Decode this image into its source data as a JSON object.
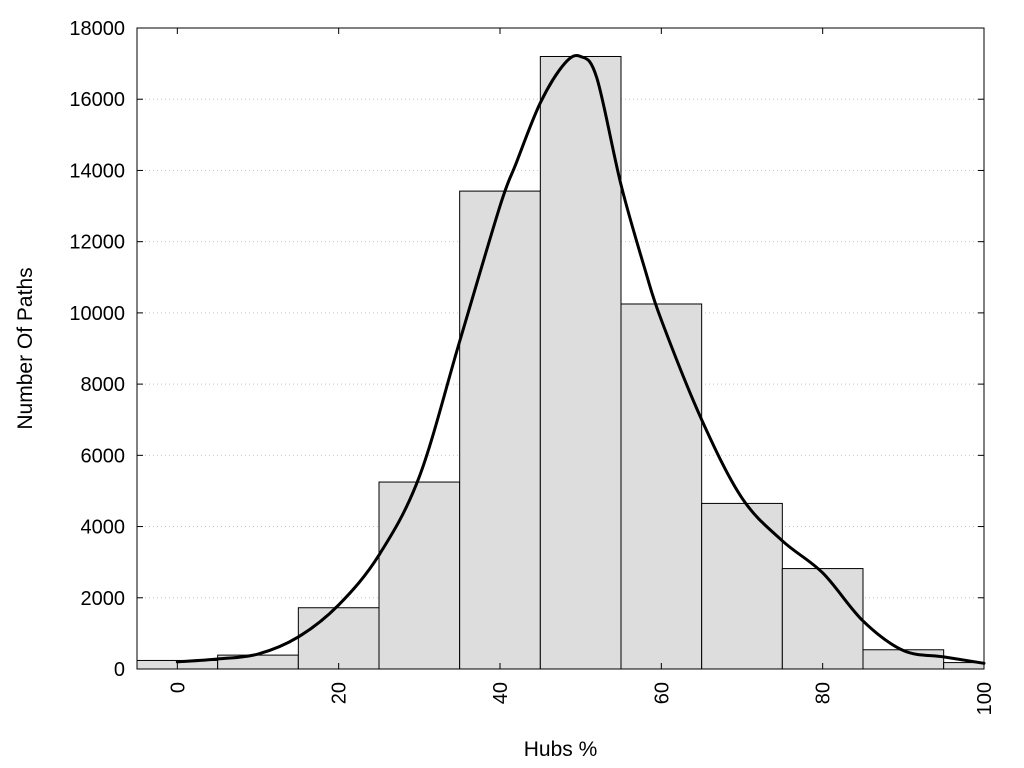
{
  "chart_data": {
    "type": "bar",
    "xlabel": "Hubs %",
    "ylabel": "Number Of Paths",
    "xlim": [
      -5,
      100
    ],
    "ylim": [
      0,
      18000
    ],
    "x_ticks": [
      0,
      20,
      40,
      60,
      80,
      100
    ],
    "y_ticks": [
      0,
      2000,
      4000,
      6000,
      8000,
      10000,
      12000,
      14000,
      16000,
      18000
    ],
    "grid": "horizontal-dotted",
    "bar_color": "#dddddd",
    "bins": [
      {
        "start": -5,
        "end": 5,
        "value": 240
      },
      {
        "start": 5,
        "end": 15,
        "value": 390
      },
      {
        "start": 15,
        "end": 25,
        "value": 1720
      },
      {
        "start": 25,
        "end": 35,
        "value": 5250
      },
      {
        "start": 35,
        "end": 45,
        "value": 13420
      },
      {
        "start": 45,
        "end": 55,
        "value": 17200
      },
      {
        "start": 55,
        "end": 65,
        "value": 10250
      },
      {
        "start": 65,
        "end": 75,
        "value": 4650
      },
      {
        "start": 75,
        "end": 85,
        "value": 2820
      },
      {
        "start": 85,
        "end": 95,
        "value": 540
      },
      {
        "start": 95,
        "end": 105,
        "value": 180
      }
    ],
    "density_curve": {
      "x": [
        0,
        5,
        10,
        15,
        20,
        25,
        30,
        35,
        40,
        42,
        45,
        48,
        50,
        52,
        55,
        58,
        60,
        65,
        70,
        75,
        80,
        85,
        90,
        95,
        100
      ],
      "y": [
        200,
        280,
        420,
        900,
        1800,
        3200,
        5400,
        9200,
        13000,
        14200,
        15900,
        17000,
        17200,
        16600,
        13600,
        11200,
        9800,
        7000,
        4800,
        3600,
        2700,
        1350,
        520,
        340,
        160
      ]
    }
  }
}
